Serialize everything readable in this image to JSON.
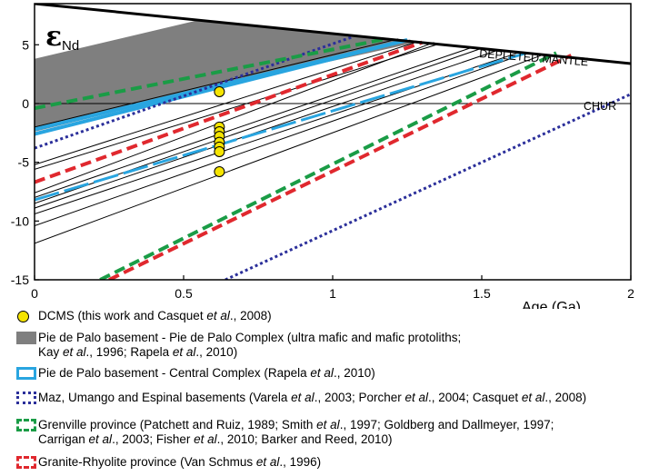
{
  "chart_data": {
    "type": "line",
    "title": "",
    "ylabel_main": "ε",
    "ylabel_sub": "Nd",
    "xlabel": "Age (Ga)",
    "xlim": [
      0,
      2
    ],
    "ylim": [
      -15,
      8.5
    ],
    "x_ticks": [
      0,
      0.5,
      1,
      1.5,
      2
    ],
    "x_tick_labels": [
      "0",
      "0.5",
      "1",
      "1.5",
      "2"
    ],
    "y_ticks": [
      5,
      0,
      -5,
      -10,
      -15
    ],
    "y_tick_labels": [
      "5",
      "0",
      "-5",
      "-10",
      "-15"
    ],
    "annotations": {
      "depleted_mantle": "DEPLETED MANTLE",
      "chur": "CHUR"
    },
    "depleted_mantle": [
      [
        0,
        8.5
      ],
      [
        2,
        3.4
      ]
    ],
    "chur": [
      [
        0,
        0
      ],
      [
        2,
        0
      ]
    ],
    "ultramafic_field": [
      [
        0,
        3.8
      ],
      [
        0.55,
        7.1
      ],
      [
        1.3,
        5.3
      ],
      [
        0.62,
        1.5
      ],
      [
        0,
        -2.4
      ]
    ],
    "dcms_points": [
      {
        "x": 0.62,
        "y": 1.0
      },
      {
        "x": 0.62,
        "y": -2.0
      },
      {
        "x": 0.62,
        "y": -2.4
      },
      {
        "x": 0.62,
        "y": -2.8
      },
      {
        "x": 0.62,
        "y": -3.3
      },
      {
        "x": 0.62,
        "y": -3.7
      },
      {
        "x": 0.62,
        "y": -4.1
      },
      {
        "x": 0.62,
        "y": -5.8
      }
    ],
    "model_lines": [
      [
        [
          0,
          -2.0
        ],
        [
          1.22,
          5.5
        ]
      ],
      [
        [
          0,
          -2.5
        ],
        [
          1.26,
          5.4
        ]
      ],
      [
        [
          0,
          -5.2
        ],
        [
          1.29,
          5.3
        ]
      ],
      [
        [
          0,
          -5.6
        ],
        [
          1.36,
          5.1
        ]
      ],
      [
        [
          0,
          -7.6
        ],
        [
          1.34,
          5.2
        ]
      ],
      [
        [
          0,
          -8.0
        ],
        [
          1.47,
          4.8
        ]
      ],
      [
        [
          0,
          -8.5
        ],
        [
          1.5,
          4.7
        ]
      ],
      [
        [
          0,
          -8.9
        ],
        [
          1.55,
          4.5
        ]
      ],
      [
        [
          0,
          -9.4
        ],
        [
          1.62,
          4.3
        ]
      ],
      [
        [
          0,
          -10.4
        ],
        [
          1.64,
          4.2
        ]
      ],
      [
        [
          0,
          -11.9
        ],
        [
          1.7,
          4.1
        ]
      ]
    ],
    "series": [
      {
        "name": "Pie de Palo basement - Central Complex",
        "color": "#29a5e0",
        "style": "band",
        "lines": [
          [
            [
              0,
              -2.6
            ],
            [
              1.25,
              5.4
            ]
          ],
          [
            [
              0,
              -2.2
            ],
            [
              1.25,
              5.4
            ]
          ],
          [
            [
              0,
              -8.2
            ],
            [
              1.65,
              4.3
            ]
          ]
        ]
      },
      {
        "name": "Maz, Umango and Espinal basements",
        "color": "#2b2f9a",
        "style": "dotted",
        "lines": [
          [
            [
              0,
              -3.8
            ],
            [
              1.07,
              5.7
            ]
          ],
          [
            [
              0.64,
              -15
            ],
            [
              2,
              0.8
            ]
          ]
        ]
      },
      {
        "name": "Grenville province",
        "color": "#1a9c46",
        "style": "dashed",
        "lines": [
          [
            [
              0,
              -0.4
            ],
            [
              1.18,
              5.5
            ]
          ],
          [
            [
              0.22,
              -15
            ],
            [
              1.75,
              4.3
            ]
          ]
        ]
      },
      {
        "name": "Granite-Rhyolite province",
        "color": "#e0282e",
        "style": "dashed",
        "lines": [
          [
            [
              0,
              -6.7
            ],
            [
              1.3,
              5.2
            ]
          ],
          [
            [
              0.25,
              -15
            ],
            [
              1.8,
              4.1
            ]
          ]
        ]
      }
    ]
  },
  "legend": [
    {
      "key": "dcms",
      "parts": [
        [
          "DCMS (this work and Casquet ",
          false
        ],
        [
          "et al",
          true
        ],
        [
          "., 2008)",
          false
        ]
      ]
    },
    {
      "key": "ultramafic",
      "parts": [
        [
          "Pie de Palo basement - Pie de Palo Complex (ultra mafic and mafic protoliths;",
          false
        ]
      ],
      "parts2": [
        [
          "Kay ",
          false
        ],
        [
          "et al",
          true
        ],
        [
          "., 1996; Rapela ",
          false
        ],
        [
          "et al",
          true
        ],
        [
          "., 2010)",
          false
        ]
      ]
    },
    {
      "key": "central",
      "parts": [
        [
          "Pie de Palo basement - Central Complex (Rapela ",
          false
        ],
        [
          "et al",
          true
        ],
        [
          "., 2010)",
          false
        ]
      ]
    },
    {
      "key": "maz",
      "parts": [
        [
          "Maz, Umango and Espinal basements (Varela ",
          false
        ],
        [
          "et al",
          true
        ],
        [
          "., 2003; Porcher ",
          false
        ],
        [
          "et al",
          true
        ],
        [
          "., 2004; Casquet ",
          false
        ],
        [
          "et al",
          true
        ],
        [
          "., 2008)",
          false
        ]
      ]
    },
    {
      "key": "grenville",
      "parts": [
        [
          "Grenville province (Patchett and Ruiz, 1989; Smith ",
          false
        ],
        [
          "et al",
          true
        ],
        [
          "., 1997; Goldberg and Dallmeyer, 1997;",
          false
        ]
      ],
      "parts2": [
        [
          "Carrigan ",
          false
        ],
        [
          "et al",
          true
        ],
        [
          "., 2003; Fisher ",
          false
        ],
        [
          "et al",
          true
        ],
        [
          "., 2010; Barker and Reed, 2010)",
          false
        ]
      ]
    },
    {
      "key": "granite",
      "parts": [
        [
          "Granite-Rhyolite province (Van Schmus ",
          false
        ],
        [
          "et al",
          true
        ],
        [
          "., 1996)",
          false
        ]
      ]
    }
  ]
}
